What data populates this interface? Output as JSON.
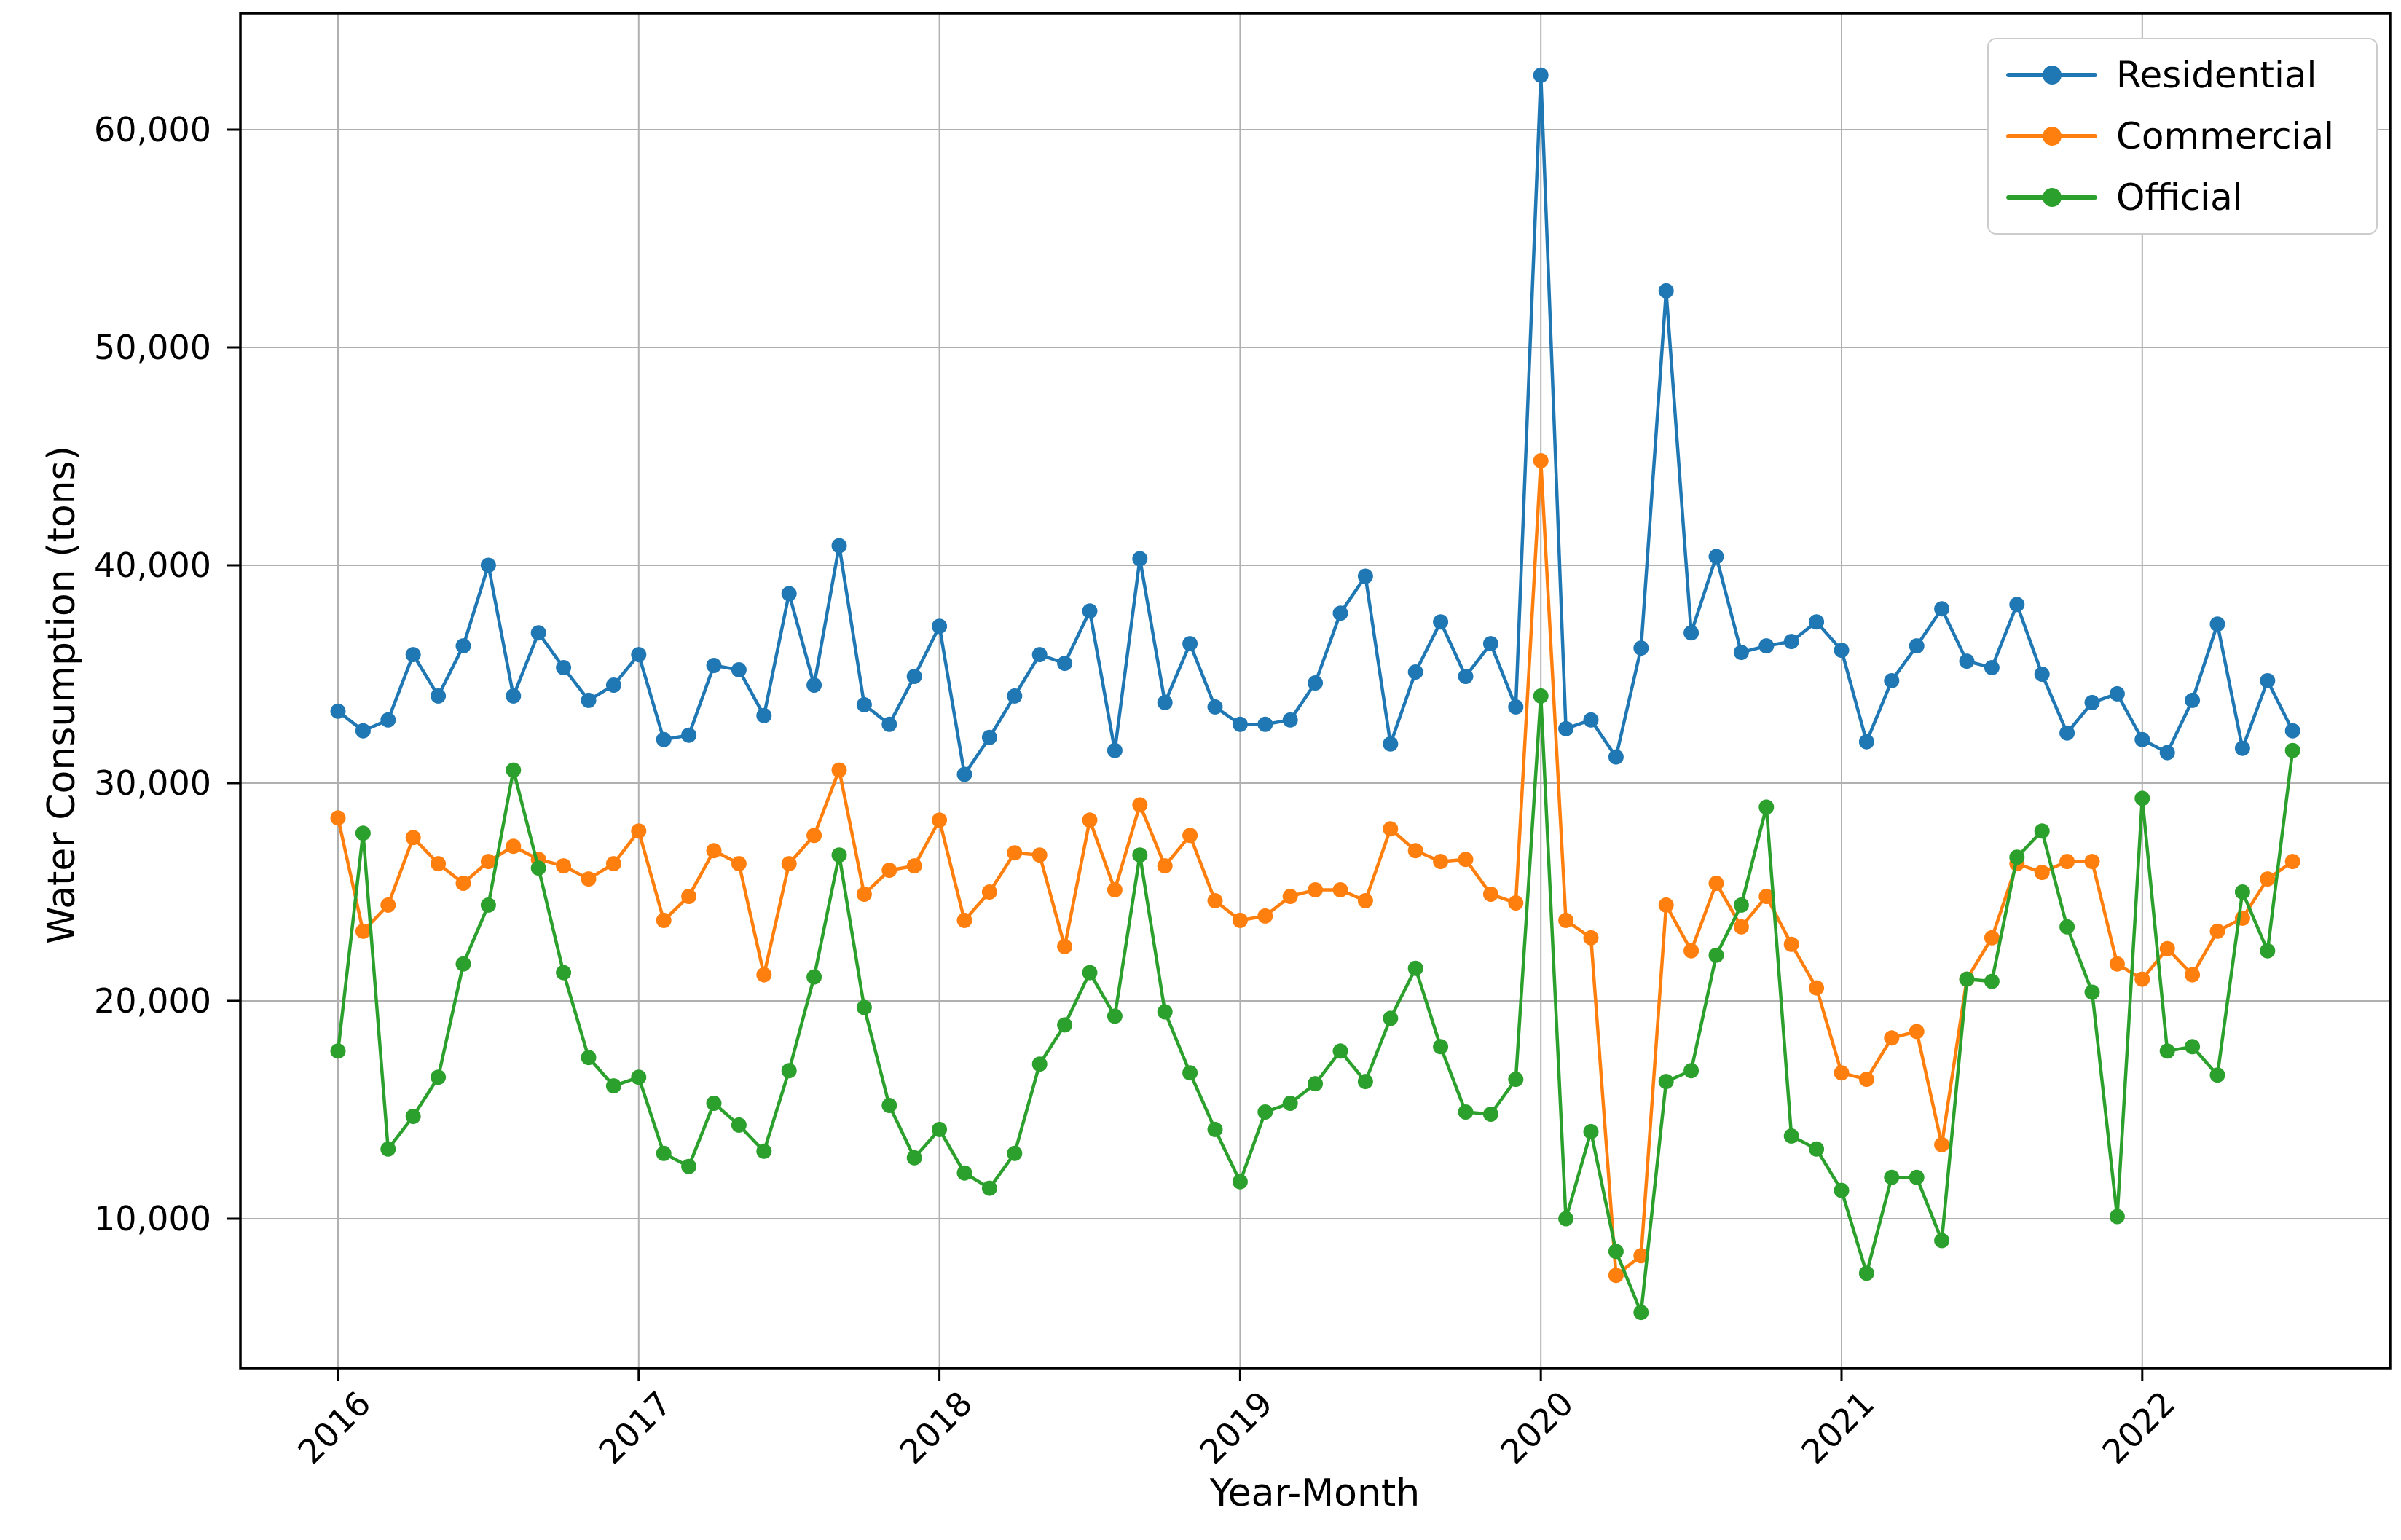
{
  "chart_data": {
    "type": "line",
    "title": "",
    "xlabel": "Year-Month",
    "ylabel": "Water Consumption (tons)",
    "grid": true,
    "legend_position": "upper right",
    "x_tick_labels": [
      "2016",
      "2017",
      "2018",
      "2019",
      "2020",
      "2021",
      "2022"
    ],
    "y_tick_labels": [
      "10,000",
      "20,000",
      "30,000",
      "40,000",
      "50,000",
      "60,000"
    ],
    "y_tick_values": [
      10000,
      20000,
      30000,
      40000,
      50000,
      60000
    ],
    "ylim": [
      2900,
      65300
    ],
    "months": [
      "2016-01",
      "2016-02",
      "2016-03",
      "2016-04",
      "2016-05",
      "2016-06",
      "2016-07",
      "2016-08",
      "2016-09",
      "2016-10",
      "2016-11",
      "2016-12",
      "2017-01",
      "2017-02",
      "2017-03",
      "2017-04",
      "2017-05",
      "2017-06",
      "2017-07",
      "2017-08",
      "2017-09",
      "2017-10",
      "2017-11",
      "2017-12",
      "2018-01",
      "2018-02",
      "2018-03",
      "2018-04",
      "2018-05",
      "2018-06",
      "2018-07",
      "2018-08",
      "2018-09",
      "2018-10",
      "2018-11",
      "2018-12",
      "2019-01",
      "2019-02",
      "2019-03",
      "2019-04",
      "2019-05",
      "2019-06",
      "2019-07",
      "2019-08",
      "2019-09",
      "2019-10",
      "2019-11",
      "2019-12",
      "2020-01",
      "2020-02",
      "2020-03",
      "2020-04",
      "2020-05",
      "2020-06",
      "2020-07",
      "2020-08",
      "2020-09",
      "2020-10",
      "2020-11",
      "2020-12",
      "2021-01",
      "2021-02",
      "2021-03",
      "2021-04",
      "2021-05",
      "2021-06",
      "2021-07",
      "2021-08",
      "2021-09",
      "2021-10",
      "2021-11",
      "2021-12",
      "2022-01",
      "2022-02",
      "2022-03",
      "2022-04",
      "2022-05",
      "2022-06",
      "2022-07"
    ],
    "series": [
      {
        "name": "Residential",
        "color": "#1f77b4",
        "values": [
          33300,
          32400,
          32900,
          35900,
          34000,
          36300,
          40000,
          34000,
          36900,
          35300,
          33800,
          34500,
          35900,
          32000,
          32200,
          35400,
          35200,
          33100,
          38700,
          34500,
          40900,
          33600,
          32700,
          34900,
          37200,
          30400,
          32100,
          34000,
          35900,
          35500,
          37900,
          31500,
          40300,
          33700,
          36400,
          33500,
          32700,
          32700,
          32900,
          34600,
          37800,
          39500,
          31800,
          35100,
          37400,
          34900,
          36400,
          33500,
          62500,
          32500,
          32900,
          31200,
          36200,
          52600,
          36900,
          40400,
          36000,
          36300,
          36500,
          37400,
          36100,
          31900,
          34700,
          36300,
          38000,
          35600,
          35300,
          38200,
          35000,
          32300,
          33700,
          34100,
          32000,
          31400,
          33800,
          37300,
          31600,
          34700,
          32400
        ]
      },
      {
        "name": "Commercial",
        "color": "#ff7f0e",
        "values": [
          28400,
          23200,
          24400,
          27500,
          26300,
          25400,
          26400,
          27100,
          26500,
          26200,
          25600,
          26300,
          27800,
          23700,
          24800,
          26900,
          26300,
          21200,
          26300,
          27600,
          30600,
          24900,
          26000,
          26200,
          28300,
          23700,
          25000,
          26800,
          26700,
          22500,
          28300,
          25100,
          29000,
          26200,
          27600,
          24600,
          23700,
          23900,
          24800,
          25100,
          25100,
          24600,
          27900,
          26900,
          26400,
          26500,
          24900,
          24500,
          44800,
          23700,
          22900,
          7400,
          8300,
          24400,
          22300,
          25400,
          23400,
          24800,
          22600,
          20600,
          16700,
          16400,
          18300,
          18600,
          13400,
          21000,
          22900,
          26300,
          25900,
          26400,
          26400,
          21700,
          21000,
          22400,
          21200,
          23200,
          23800,
          25600,
          26400
        ]
      },
      {
        "name": "Official",
        "color": "#2ca02c",
        "values": [
          17700,
          27700,
          13200,
          14700,
          16500,
          21700,
          24400,
          30600,
          26100,
          21300,
          17400,
          16100,
          16500,
          13000,
          12400,
          15300,
          14300,
          13100,
          16800,
          21100,
          26700,
          19700,
          15200,
          12800,
          14100,
          12100,
          11400,
          13000,
          17100,
          18900,
          21300,
          19300,
          26700,
          19500,
          16700,
          14100,
          11700,
          14900,
          15300,
          16200,
          17700,
          16300,
          19200,
          21500,
          17900,
          14900,
          14800,
          16400,
          34000,
          10000,
          14000,
          8500,
          5700,
          16300,
          16800,
          22100,
          24400,
          28900,
          13800,
          13200,
          11300,
          7500,
          11900,
          11900,
          9000,
          21000,
          20900,
          26600,
          27800,
          23400,
          20400,
          10100,
          29300,
          17700,
          17900,
          16600,
          25000,
          22300,
          31500
        ]
      }
    ],
    "style": {
      "grid_color": "#b0b0b0",
      "spine_color": "#000000",
      "background": "#ffffff"
    }
  }
}
